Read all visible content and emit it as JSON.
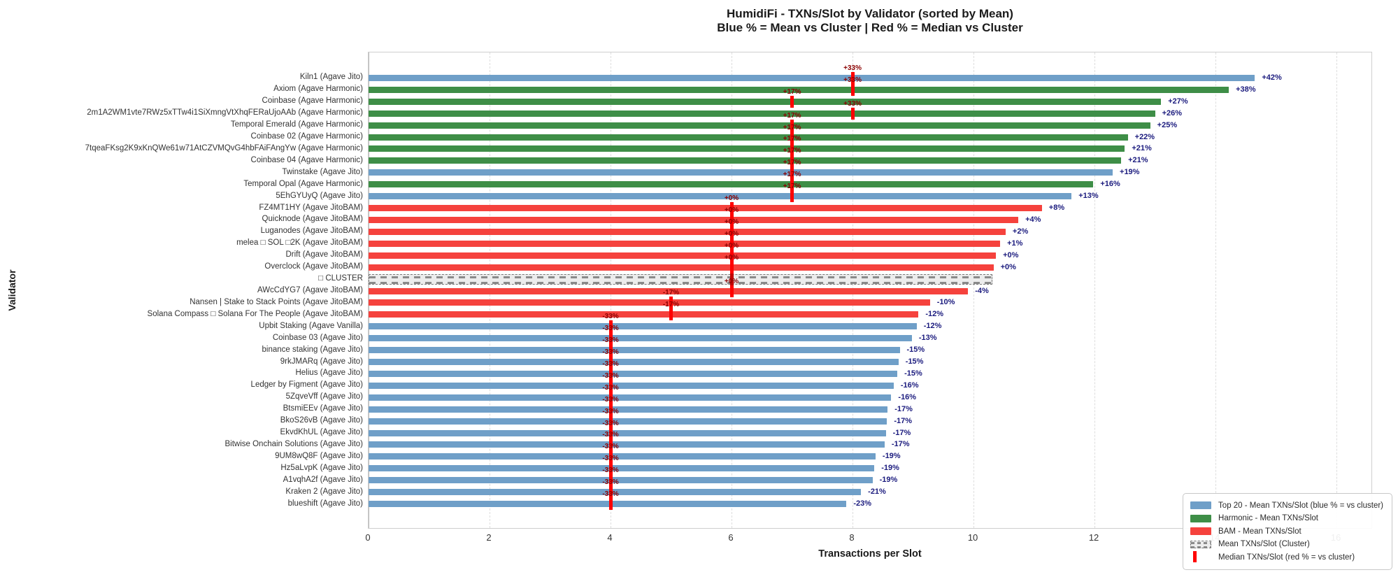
{
  "chart_data": {
    "type": "bar",
    "orientation": "horizontal",
    "title": "HumidiFi - TXNs/Slot by Validator (sorted by Mean)",
    "subtitle": "Blue % = Mean vs Cluster | Red % = Median vs Cluster",
    "xlabel": "Transactions per Slot",
    "ylabel": "Validator",
    "xticks": [
      0,
      2,
      4,
      6,
      8,
      10,
      12,
      14,
      16
    ],
    "xlim": [
      0,
      16.6
    ],
    "grid": "vertical-dashed",
    "legend_position": "lower right",
    "cluster_mean": 10.31,
    "cluster_median": 6,
    "legend": [
      {
        "swatch": "top20",
        "label": "Top 20 - Mean TXNs/Slot (blue % = vs cluster)"
      },
      {
        "swatch": "harmonic",
        "label": "Harmonic - Mean TXNs/Slot"
      },
      {
        "swatch": "bam",
        "label": "BAM - Mean TXNs/Slot"
      },
      {
        "swatch": "cluster",
        "label": "Mean TXNs/Slot (Cluster)"
      },
      {
        "swatch": "median",
        "label": "Median TXNs/Slot (red % = vs cluster)"
      }
    ],
    "colors": {
      "top20": "#6f9fc8",
      "harmonic": "#3e8e47",
      "bam": "#f5423d",
      "cluster_fill": "#ececec",
      "cluster_hatch": "#8a8a8a",
      "median_marker": "#ff0000",
      "mean_label_text": "#1b1b7e",
      "median_label_text": "#8b0000"
    },
    "rows": [
      {
        "label": "Kiln1 (Agave Jito)",
        "group": "top20",
        "mean": 14.65,
        "mean_label": "+42%",
        "median": 8,
        "median_label": "+33%"
      },
      {
        "label": "Axiom (Agave Harmonic)",
        "group": "harmonic",
        "mean": 14.22,
        "mean_label": "+38%",
        "median": 8,
        "median_label": "+33%"
      },
      {
        "label": "Coinbase (Agave Harmonic)",
        "group": "harmonic",
        "mean": 13.1,
        "mean_label": "+27%",
        "median": 7,
        "median_label": "+17%"
      },
      {
        "label": "2m1A2WM1vte7RWz5xTTw4i1SiXmngVtXhqFERaUjoAAb (Agave Harmonic)",
        "group": "harmonic",
        "mean": 13.0,
        "mean_label": "+26%",
        "median": 8,
        "median_label": "+33%"
      },
      {
        "label": "Temporal Emerald (Agave Harmonic)",
        "group": "harmonic",
        "mean": 12.92,
        "mean_label": "+25%",
        "median": 7,
        "median_label": "+17%"
      },
      {
        "label": "Coinbase 02 (Agave Harmonic)",
        "group": "harmonic",
        "mean": 12.55,
        "mean_label": "+22%",
        "median": 7,
        "median_label": "+17%"
      },
      {
        "label": "7tqeaFKsg2K9xKnQWe61w71AtCZVMQvG4hbFAiFAngYw (Agave Harmonic)",
        "group": "harmonic",
        "mean": 12.5,
        "mean_label": "+21%",
        "median": 7,
        "median_label": "+17%"
      },
      {
        "label": "Coinbase 04 (Agave Harmonic)",
        "group": "harmonic",
        "mean": 12.44,
        "mean_label": "+21%",
        "median": 7,
        "median_label": "+17%"
      },
      {
        "label": "Twinstake (Agave Jito)",
        "group": "top20",
        "mean": 12.3,
        "mean_label": "+19%",
        "median": 7,
        "median_label": "+17%"
      },
      {
        "label": "Temporal Opal (Agave Harmonic)",
        "group": "harmonic",
        "mean": 11.98,
        "mean_label": "+16%",
        "median": 7,
        "median_label": "+17%"
      },
      {
        "label": "5EhGYUyQ (Agave Jito)",
        "group": "top20",
        "mean": 11.62,
        "mean_label": "+13%",
        "median": 7,
        "median_label": "+17%"
      },
      {
        "label": "FZ4MT1HY (Agave JitoBAM)",
        "group": "bam",
        "mean": 11.13,
        "mean_label": "+8%",
        "median": 6,
        "median_label": "+0%"
      },
      {
        "label": "Quicknode (Agave JitoBAM)",
        "group": "bam",
        "mean": 10.74,
        "mean_label": "+4%",
        "median": 6,
        "median_label": "+0%"
      },
      {
        "label": "Luganodes (Agave JitoBAM)",
        "group": "bam",
        "mean": 10.53,
        "mean_label": "+2%",
        "median": 6,
        "median_label": "+0%"
      },
      {
        "label": "melea □ SOL □2K (Agave JitoBAM)",
        "group": "bam",
        "mean": 10.44,
        "mean_label": "+1%",
        "median": 6,
        "median_label": "+0%"
      },
      {
        "label": "Drift (Agave JitoBAM)",
        "group": "bam",
        "mean": 10.37,
        "mean_label": "+0%",
        "median": 6,
        "median_label": "+0%"
      },
      {
        "label": "Overclock (Agave JitoBAM)",
        "group": "bam",
        "mean": 10.33,
        "mean_label": "+0%",
        "median": 6,
        "median_label": "+0%"
      },
      {
        "label": "□ CLUSTER",
        "group": "cluster",
        "mean": 10.31,
        "mean_label": null,
        "median": 6,
        "median_label": null
      },
      {
        "label": "AWcCdYG7 (Agave JitoBAM)",
        "group": "bam",
        "mean": 9.91,
        "mean_label": "-4%",
        "median": 6,
        "median_label": "+0%"
      },
      {
        "label": "Nansen | Stake to Stack Points (Agave JitoBAM)",
        "group": "bam",
        "mean": 9.28,
        "mean_label": "-10%",
        "median": 5,
        "median_label": "-17%"
      },
      {
        "label": "Solana Compass □ Solana For The People (Agave JitoBAM)",
        "group": "bam",
        "mean": 9.09,
        "mean_label": "-12%",
        "median": 5,
        "median_label": "-17%"
      },
      {
        "label": "Upbit Staking (Agave Vanilla)",
        "group": "top20",
        "mean": 9.06,
        "mean_label": "-12%",
        "median": 4,
        "median_label": "-33%"
      },
      {
        "label": "Coinbase 03 (Agave Jito)",
        "group": "top20",
        "mean": 8.98,
        "mean_label": "-13%",
        "median": 4,
        "median_label": "-33%"
      },
      {
        "label": "binance staking (Agave Jito)",
        "group": "top20",
        "mean": 8.78,
        "mean_label": "-15%",
        "median": 4,
        "median_label": "-33%"
      },
      {
        "label": "9rkJMARq (Agave Jito)",
        "group": "top20",
        "mean": 8.76,
        "mean_label": "-15%",
        "median": 4,
        "median_label": "-33%"
      },
      {
        "label": "Helius (Agave Jito)",
        "group": "top20",
        "mean": 8.74,
        "mean_label": "-15%",
        "median": 4,
        "median_label": "-33%"
      },
      {
        "label": "Ledger by Figment (Agave Jito)",
        "group": "top20",
        "mean": 8.68,
        "mean_label": "-16%",
        "median": 4,
        "median_label": "-33%"
      },
      {
        "label": "5ZqveVff (Agave Jito)",
        "group": "top20",
        "mean": 8.64,
        "mean_label": "-16%",
        "median": 4,
        "median_label": "-33%"
      },
      {
        "label": "BtsmiEEv (Agave Jito)",
        "group": "top20",
        "mean": 8.58,
        "mean_label": "-17%",
        "median": 4,
        "median_label": "-33%"
      },
      {
        "label": "BkoS26vB (Agave Jito)",
        "group": "top20",
        "mean": 8.57,
        "mean_label": "-17%",
        "median": 4,
        "median_label": "-33%"
      },
      {
        "label": "EkvdKhUL (Agave Jito)",
        "group": "top20",
        "mean": 8.55,
        "mean_label": "-17%",
        "median": 4,
        "median_label": "-33%"
      },
      {
        "label": "Bitwise Onchain Solutions (Agave Jito)",
        "group": "top20",
        "mean": 8.53,
        "mean_label": "-17%",
        "median": 4,
        "median_label": "-33%"
      },
      {
        "label": "9UM8wQ8F (Agave Jito)",
        "group": "top20",
        "mean": 8.38,
        "mean_label": "-19%",
        "median": 4,
        "median_label": "-33%"
      },
      {
        "label": "Hz5aLvpK (Agave Jito)",
        "group": "top20",
        "mean": 8.36,
        "mean_label": "-19%",
        "median": 4,
        "median_label": "-33%"
      },
      {
        "label": "A1vqhA2f (Agave Jito)",
        "group": "top20",
        "mean": 8.33,
        "mean_label": "-19%",
        "median": 4,
        "median_label": "-33%"
      },
      {
        "label": "Kraken 2 (Agave Jito)",
        "group": "top20",
        "mean": 8.14,
        "mean_label": "-21%",
        "median": 4,
        "median_label": "-33%"
      },
      {
        "label": "blueshift (Agave Jito)",
        "group": "top20",
        "mean": 7.9,
        "mean_label": "-23%",
        "median": 4,
        "median_label": "-33%"
      }
    ]
  }
}
